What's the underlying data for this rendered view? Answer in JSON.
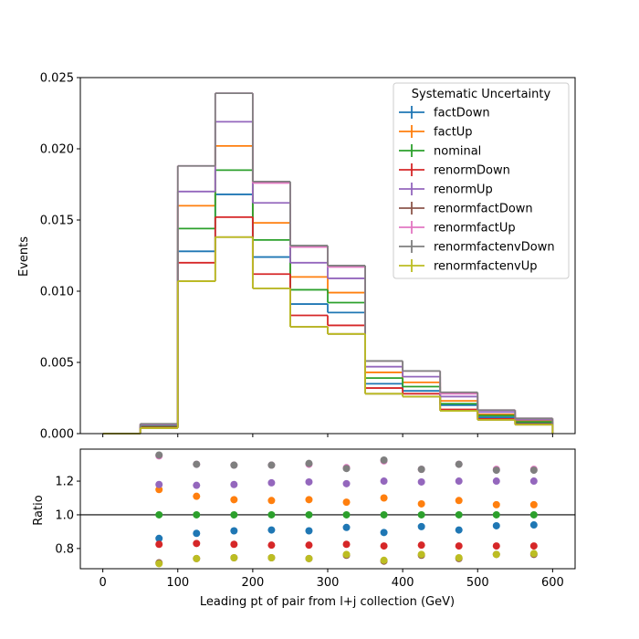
{
  "chart_data": {
    "type": "line",
    "bin_edges": [
      0,
      50,
      100,
      150,
      200,
      250,
      300,
      350,
      400,
      450,
      500,
      550,
      600
    ],
    "xlabel": "Leading pt of pair from l+j collection (GeV)",
    "xlim": [
      -30,
      630
    ],
    "x_ticks": [
      0,
      100,
      200,
      300,
      400,
      500,
      600
    ],
    "legend": {
      "title": "Systematic Uncertainty",
      "placement": "top-right"
    },
    "main": {
      "ylabel": "Events",
      "ylim": [
        0,
        0.025
      ],
      "y_ticks": [
        "0.000",
        "0.005",
        "0.010",
        "0.015",
        "0.020",
        "0.025"
      ],
      "series": [
        {
          "name": "factDown",
          "color": "#1f77b4",
          "values": [
            0,
            0.00045,
            0.0128,
            0.0168,
            0.0124,
            0.0091,
            0.0085,
            0.0035,
            0.003,
            0.002,
            0.00115,
            0.00075
          ]
        },
        {
          "name": "factUp",
          "color": "#ff7f0e",
          "values": [
            0,
            0.0006,
            0.016,
            0.0202,
            0.0148,
            0.011,
            0.0099,
            0.0043,
            0.0036,
            0.0023,
            0.00135,
            0.00087
          ]
        },
        {
          "name": "nominal",
          "color": "#2ca02c",
          "values": [
            0,
            0.00052,
            0.0144,
            0.0185,
            0.0136,
            0.0101,
            0.0092,
            0.0039,
            0.0033,
            0.0021,
            0.00127,
            0.00082
          ]
        },
        {
          "name": "renormDown",
          "color": "#d62728",
          "values": [
            0,
            0.00043,
            0.012,
            0.0152,
            0.0112,
            0.0083,
            0.0076,
            0.0032,
            0.0028,
            0.0017,
            0.00103,
            0.00067
          ]
        },
        {
          "name": "renormUp",
          "color": "#9467bd",
          "values": [
            0,
            0.00061,
            0.017,
            0.0219,
            0.0162,
            0.012,
            0.0109,
            0.0047,
            0.004,
            0.0026,
            0.00152,
            0.00098
          ]
        },
        {
          "name": "renormfactDown",
          "color": "#8c564b",
          "values": [
            0,
            0.00039,
            0.0107,
            0.0138,
            0.0102,
            0.0075,
            0.007,
            0.0028,
            0.0026,
            0.0016,
            0.00096,
            0.00063
          ]
        },
        {
          "name": "renormfactUp",
          "color": "#e377c2",
          "values": [
            0,
            0.00068,
            0.0188,
            0.0239,
            0.0176,
            0.0131,
            0.0117,
            0.0051,
            0.0044,
            0.0028,
            0.00165,
            0.00107
          ]
        },
        {
          "name": "renormfactenvDown",
          "color": "#7f7f7f",
          "values": [
            0,
            0.00069,
            0.0188,
            0.0239,
            0.0177,
            0.0132,
            0.0118,
            0.0051,
            0.0044,
            0.0029,
            0.00165,
            0.00107
          ]
        },
        {
          "name": "renormfactenvUp",
          "color": "#bcbd22",
          "values": [
            0,
            0.00039,
            0.0107,
            0.0138,
            0.0102,
            0.0075,
            0.007,
            0.0028,
            0.0026,
            0.0016,
            0.00096,
            0.00063
          ]
        }
      ]
    },
    "ratio": {
      "ylabel": "Ratio",
      "ylim": [
        0.68,
        1.39
      ],
      "y_ticks": [
        "0.8",
        "1.0",
        "1.2"
      ],
      "reference_line": 1.0,
      "x": [
        75,
        125,
        175,
        225,
        275,
        325,
        375,
        425,
        475,
        525,
        575
      ],
      "series": [
        {
          "name": "factDown",
          "color": "#1f77b4",
          "values": [
            0.86,
            0.89,
            0.905,
            0.91,
            0.905,
            0.925,
            0.895,
            0.93,
            0.91,
            0.935,
            0.94
          ]
        },
        {
          "name": "factUp",
          "color": "#ff7f0e",
          "values": [
            1.15,
            1.11,
            1.09,
            1.085,
            1.09,
            1.075,
            1.1,
            1.065,
            1.085,
            1.06,
            1.06
          ]
        },
        {
          "name": "nominal",
          "color": "#2ca02c",
          "values": [
            1.0,
            1.0,
            1.0,
            1.0,
            1.0,
            1.0,
            1.0,
            1.0,
            1.0,
            1.0,
            1.0
          ]
        },
        {
          "name": "renormDown",
          "color": "#d62728",
          "values": [
            0.825,
            0.83,
            0.825,
            0.82,
            0.82,
            0.825,
            0.815,
            0.82,
            0.815,
            0.815,
            0.815
          ]
        },
        {
          "name": "renormUp",
          "color": "#9467bd",
          "values": [
            1.18,
            1.175,
            1.18,
            1.19,
            1.195,
            1.185,
            1.2,
            1.195,
            1.2,
            1.2,
            1.2
          ]
        },
        {
          "name": "renormfactDown",
          "color": "#8c564b",
          "values": [
            0.715,
            0.74,
            0.745,
            0.745,
            0.74,
            0.76,
            0.725,
            0.76,
            0.74,
            0.765,
            0.765
          ]
        },
        {
          "name": "renormfactUp",
          "color": "#e377c2",
          "values": [
            1.35,
            1.3,
            1.295,
            1.295,
            1.3,
            1.28,
            1.32,
            1.27,
            1.3,
            1.27,
            1.27
          ]
        },
        {
          "name": "renormfactenvDown",
          "color": "#7f7f7f",
          "values": [
            1.355,
            1.3,
            1.295,
            1.295,
            1.305,
            1.275,
            1.325,
            1.27,
            1.3,
            1.265,
            1.265
          ]
        },
        {
          "name": "renormfactenvUp",
          "color": "#bcbd22",
          "values": [
            0.71,
            0.74,
            0.745,
            0.745,
            0.74,
            0.765,
            0.73,
            0.765,
            0.745,
            0.765,
            0.77
          ]
        }
      ]
    }
  }
}
